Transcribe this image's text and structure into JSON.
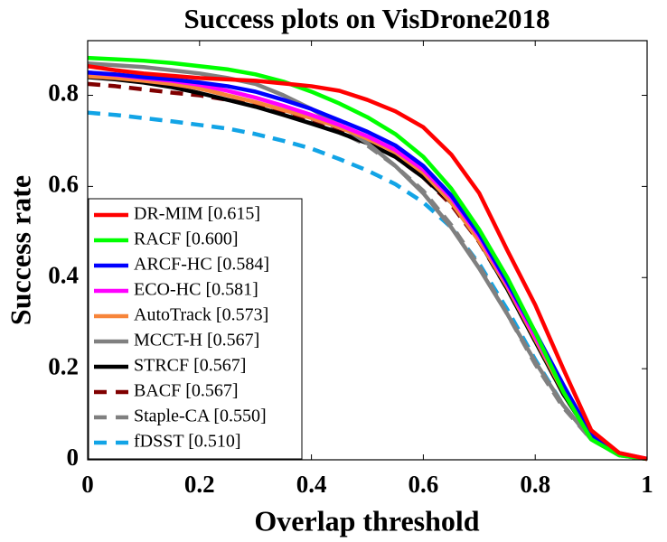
{
  "chart_data": {
    "type": "line",
    "title": "Success plots on VisDrone2018",
    "xlabel": "Overlap threshold",
    "ylabel": "Success rate",
    "x": [
      0,
      0.05,
      0.1,
      0.15,
      0.2,
      0.25,
      0.3,
      0.35,
      0.4,
      0.45,
      0.5,
      0.55,
      0.6,
      0.65,
      0.7,
      0.75,
      0.8,
      0.85,
      0.9,
      0.95,
      1
    ],
    "xlim": [
      0,
      1
    ],
    "xticks": [
      0,
      0.2,
      0.4,
      0.6,
      0.8,
      1
    ],
    "ylim": [
      0,
      0.92
    ],
    "yticks": [
      0,
      0.2,
      0.4,
      0.6,
      0.8
    ],
    "grid": false,
    "legend": "southwest",
    "series": [
      {
        "name": "DR-MIM [0.615]",
        "color": "#ff0000",
        "linestyle": "solid",
        "values": [
          0.864,
          0.855,
          0.848,
          0.843,
          0.838,
          0.835,
          0.832,
          0.826,
          0.82,
          0.81,
          0.79,
          0.765,
          0.73,
          0.67,
          0.585,
          0.46,
          0.34,
          0.2,
          0.065,
          0.015,
          0.002
        ]
      },
      {
        "name": "RACF [0.600]",
        "color": "#00ff00",
        "linestyle": "solid",
        "values": [
          0.882,
          0.879,
          0.876,
          0.871,
          0.864,
          0.857,
          0.846,
          0.83,
          0.808,
          0.782,
          0.752,
          0.715,
          0.665,
          0.595,
          0.505,
          0.4,
          0.28,
          0.15,
          0.045,
          0.01,
          0.002
        ]
      },
      {
        "name": "ARCF-HC [0.584]",
        "color": "#0000ff",
        "linestyle": "solid",
        "values": [
          0.85,
          0.846,
          0.84,
          0.835,
          0.828,
          0.82,
          0.808,
          0.79,
          0.77,
          0.745,
          0.72,
          0.69,
          0.645,
          0.58,
          0.495,
          0.39,
          0.28,
          0.165,
          0.055,
          0.012,
          0.002
        ]
      },
      {
        "name": "ECO-HC [0.581]",
        "color": "#ff00ff",
        "linestyle": "solid",
        "values": [
          0.85,
          0.845,
          0.838,
          0.832,
          0.823,
          0.81,
          0.795,
          0.777,
          0.757,
          0.735,
          0.71,
          0.68,
          0.637,
          0.575,
          0.49,
          0.385,
          0.27,
          0.155,
          0.055,
          0.015,
          0.002
        ]
      },
      {
        "name": "AutoTrack [0.573]",
        "color": "#f7853a",
        "linestyle": "solid",
        "values": [
          0.842,
          0.838,
          0.832,
          0.825,
          0.815,
          0.8,
          0.785,
          0.768,
          0.75,
          0.73,
          0.705,
          0.675,
          0.63,
          0.565,
          0.48,
          0.38,
          0.265,
          0.15,
          0.05,
          0.012,
          0.002
        ]
      },
      {
        "name": "MCCT-H [0.567]",
        "color": "#808080",
        "linestyle": "solid",
        "values": [
          0.87,
          0.866,
          0.862,
          0.855,
          0.848,
          0.838,
          0.825,
          0.8,
          0.77,
          0.735,
          0.695,
          0.645,
          0.585,
          0.51,
          0.42,
          0.32,
          0.215,
          0.12,
          0.045,
          0.01,
          0.002
        ]
      },
      {
        "name": "STRCF [0.567]",
        "color": "#000000",
        "linestyle": "solid",
        "values": [
          0.84,
          0.835,
          0.828,
          0.818,
          0.805,
          0.79,
          0.775,
          0.757,
          0.738,
          0.718,
          0.695,
          0.665,
          0.62,
          0.565,
          0.48,
          0.375,
          0.26,
          0.145,
          0.05,
          0.012,
          0.002
        ]
      },
      {
        "name": "BACF [0.567]",
        "color": "#800000",
        "linestyle": "dashed",
        "values": [
          0.825,
          0.82,
          0.813,
          0.806,
          0.8,
          0.79,
          0.777,
          0.76,
          0.74,
          0.72,
          0.695,
          0.665,
          0.62,
          0.56,
          0.478,
          0.375,
          0.26,
          0.145,
          0.05,
          0.012,
          0.002
        ]
      },
      {
        "name": "Staple-CA [0.550]",
        "color": "#808080",
        "linestyle": "dashed",
        "values": [
          0.845,
          0.84,
          0.834,
          0.826,
          0.815,
          0.8,
          0.784,
          0.765,
          0.745,
          0.72,
          0.69,
          0.645,
          0.59,
          0.515,
          0.425,
          0.32,
          0.21,
          0.115,
          0.045,
          0.01,
          0.002
        ]
      },
      {
        "name": "fDSST [0.510]",
        "color": "#12a4e6",
        "linestyle": "dashed",
        "values": [
          0.762,
          0.757,
          0.75,
          0.743,
          0.735,
          0.727,
          0.715,
          0.7,
          0.683,
          0.66,
          0.635,
          0.605,
          0.565,
          0.51,
          0.43,
          0.33,
          0.22,
          0.12,
          0.045,
          0.01,
          0.002
        ]
      }
    ]
  }
}
